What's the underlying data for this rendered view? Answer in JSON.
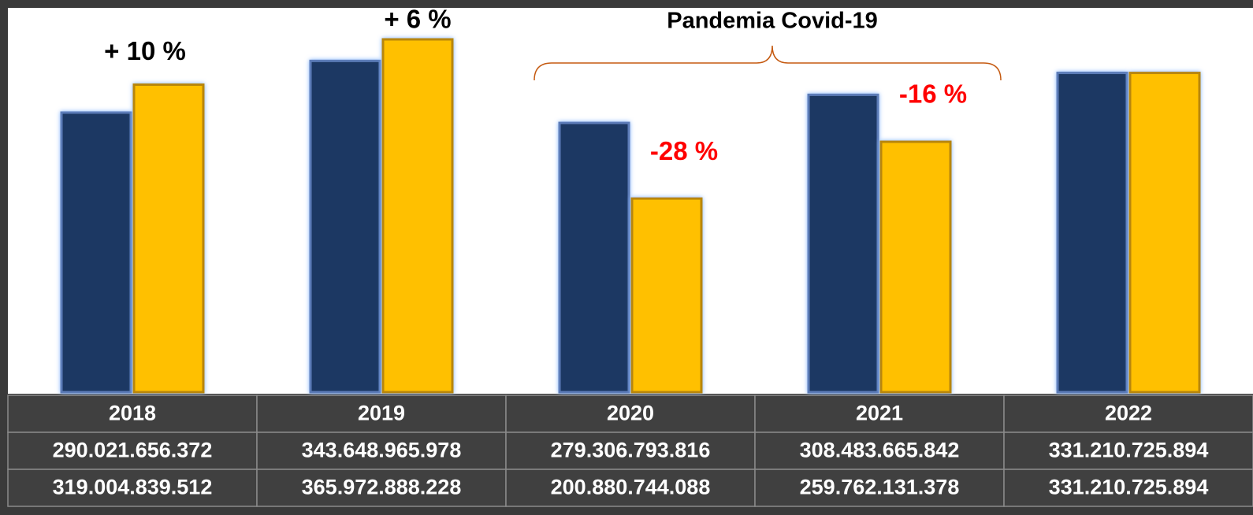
{
  "chart_data": {
    "type": "bar",
    "categories": [
      "2018",
      "2019",
      "2020",
      "2021",
      "2022"
    ],
    "series": [
      {
        "color": "#1f3864",
        "values": [
          290021656372,
          343648965978,
          279306793816,
          308483665842,
          331210725894
        ],
        "value_labels": [
          "290.021.656.372",
          "343.648.965.978",
          "279.306.793.816",
          "308.483.665.842",
          "331.210.725.894"
        ]
      },
      {
        "color": "#ffc000",
        "values": [
          319004839512,
          365972888228,
          200880744088,
          259762131378,
          331210725894
        ],
        "value_labels": [
          "319.004.839.512",
          "365.972.888.228",
          "200.880.744.088",
          "259.762.131.378",
          "331.210.725.894"
        ]
      }
    ],
    "annotations": [
      {
        "text": "+ 10 %",
        "category": "2018",
        "color": "#000000"
      },
      {
        "text": "+ 6 %",
        "category": "2019",
        "color": "#000000"
      },
      {
        "text": "-28 %",
        "category": "2020",
        "color": "#ff0000"
      },
      {
        "text": "-16 %",
        "category": "2021",
        "color": "#ff0000"
      }
    ],
    "bracket_label": "Pandemia Covid-19"
  }
}
